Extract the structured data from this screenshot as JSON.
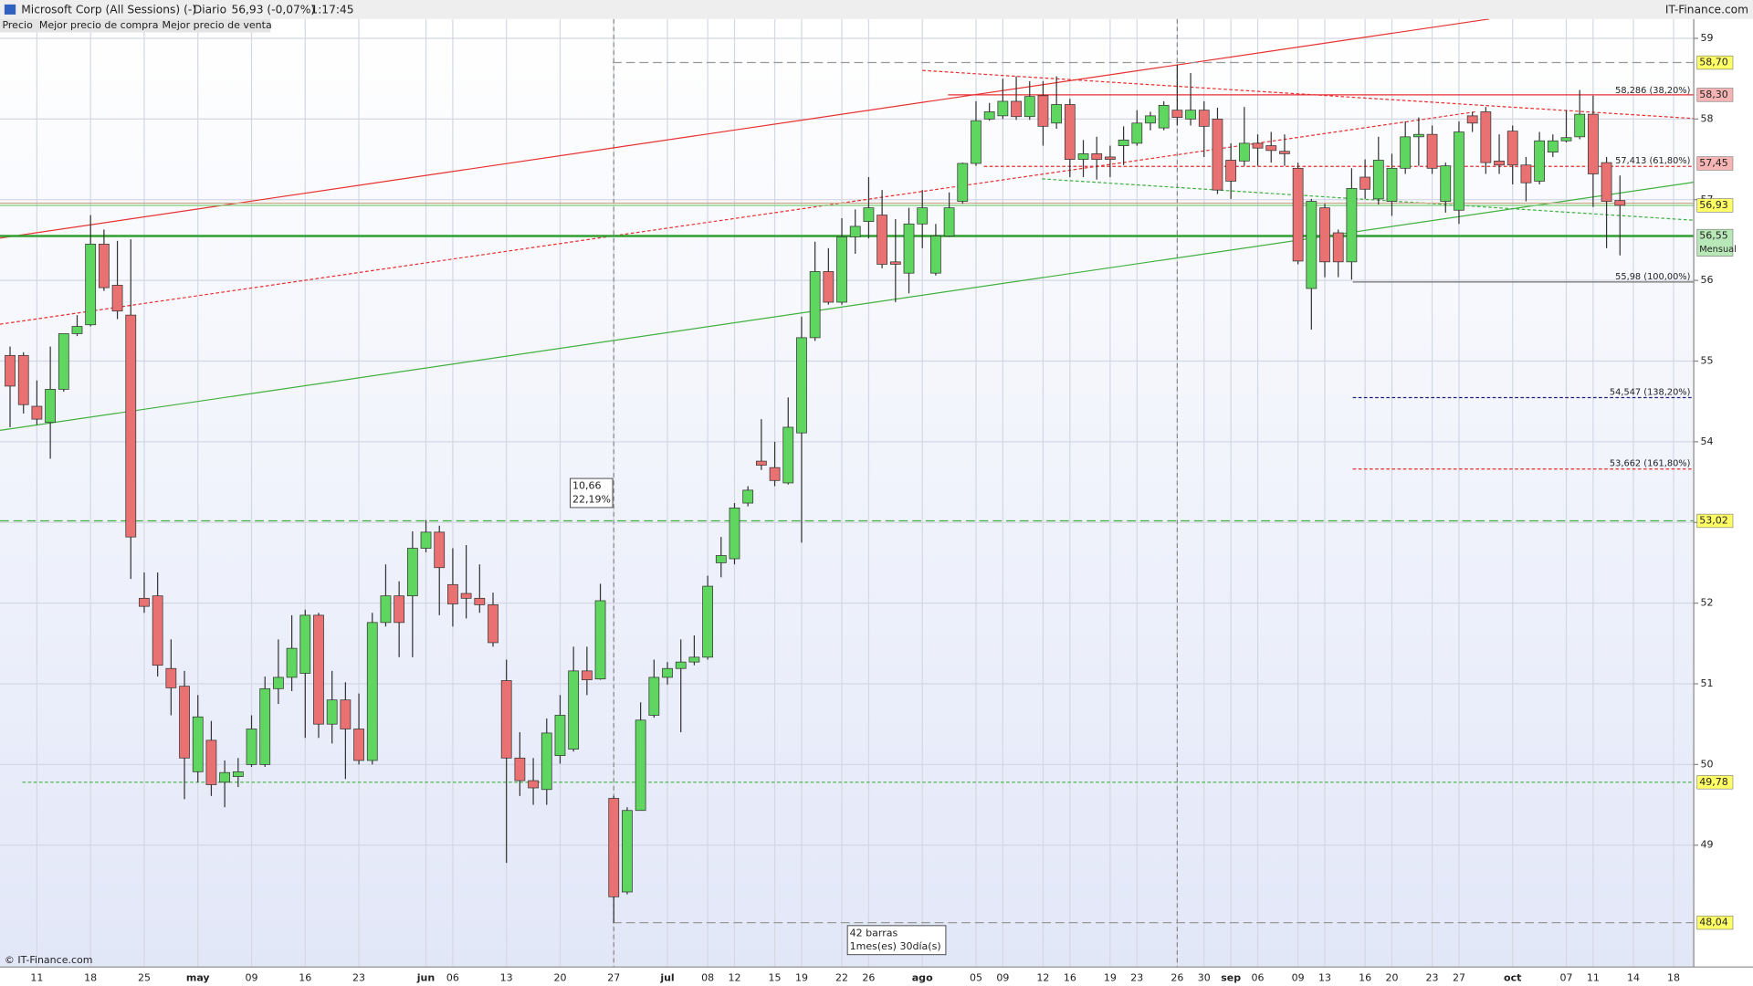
{
  "chart_data": {
    "type": "candlestick",
    "title": "Microsoft Corp (All Sessions) (-)",
    "period": "Diario",
    "last": "56,93 (-0,07%)",
    "time": "1:17:45",
    "source": "IT-Finance.com",
    "footer": "© IT-Finance.com",
    "legend": [
      "Precio",
      "Mejor precio de compra",
      "Mejor precio de venta"
    ],
    "legend_colors": [
      "#000000",
      "#22aa22",
      "#e03030"
    ],
    "up_color": "#5fd65f",
    "down_color": "#e97171",
    "grid": true,
    "ylim": [
      47.49,
      59.24
    ],
    "yticks": [
      49,
      50,
      51,
      52,
      53,
      54,
      55,
      56,
      57,
      58,
      59
    ],
    "categories": [
      null,
      null,
      "11",
      null,
      null,
      null,
      "18",
      null,
      null,
      null,
      "25",
      null,
      null,
      null,
      "may",
      null,
      null,
      null,
      "09",
      null,
      null,
      null,
      "16",
      null,
      null,
      null,
      "23",
      null,
      null,
      null,
      null,
      "jun",
      null,
      "06",
      null,
      null,
      null,
      "13",
      null,
      null,
      null,
      "20",
      null,
      null,
      null,
      "27",
      null,
      null,
      null,
      "jul",
      null,
      null,
      "08",
      null,
      "12",
      null,
      null,
      "15",
      null,
      "19",
      null,
      null,
      "22",
      null,
      "26",
      null,
      null,
      null,
      "ago",
      null,
      null,
      null,
      "05",
      null,
      "09",
      null,
      null,
      "12",
      null,
      "16",
      null,
      null,
      "19",
      null,
      "23",
      null,
      null,
      "26",
      null,
      "30",
      null,
      "sep",
      null,
      "06",
      null,
      null,
      "09",
      null,
      "13",
      null,
      null,
      "16",
      null,
      "20",
      null,
      null,
      "23",
      null,
      "27",
      null,
      null,
      null,
      "oct",
      null,
      null,
      null,
      "07",
      null,
      "11",
      null,
      null,
      "14",
      null,
      null,
      "18"
    ],
    "open": [
      55.07,
      55.07,
      54.44,
      54.24,
      54.65,
      55.34,
      55.45,
      56.45,
      55.94,
      55.57,
      52.06,
      52.09,
      51.19,
      50.97,
      49.91,
      50.3,
      49.78,
      49.85,
      50.0,
      50.0,
      50.94,
      51.08,
      51.13,
      51.85,
      50.5,
      50.8,
      50.44,
      50.05,
      51.76,
      52.09,
      52.09,
      52.68,
      52.88,
      52.23,
      52.12,
      52.06,
      51.98,
      51.04,
      50.08,
      49.8,
      49.69,
      50.11,
      50.19,
      51.16,
      51.06,
      49.58,
      48.42,
      49.43,
      50.61,
      51.08,
      51.19,
      51.27,
      51.33,
      52.5,
      52.55,
      53.24,
      53.76,
      53.68,
      53.49,
      54.11,
      55.29,
      56.11,
      55.73,
      56.54,
      56.73,
      56.81,
      56.23,
      56.09,
      56.7,
      56.09,
      56.55,
      56.98,
      57.45,
      58.0,
      58.04,
      58.22,
      58.03,
      58.29,
      57.95,
      58.18,
      57.5,
      57.57,
      57.53,
      57.67,
      57.7,
      57.95,
      57.89,
      58.11,
      58.0,
      58.11,
      58.0,
      57.49,
      57.48,
      57.7,
      57.67,
      57.6,
      57.39,
      55.9,
      56.9,
      56.59,
      56.23,
      57.28,
      57.01,
      56.98,
      57.39,
      57.78,
      57.81,
      56.98,
      56.87,
      58.04,
      58.09,
      57.48,
      57.85,
      57.43,
      57.23,
      57.59,
      57.73,
      57.78,
      58.06,
      57.46,
      56.99,
      null,
      null,
      null,
      null
    ],
    "high": [
      55.18,
      55.11,
      54.76,
      55.18,
      55.34,
      55.57,
      56.81,
      56.63,
      56.49,
      56.51,
      52.38,
      52.38,
      51.55,
      51.16,
      50.86,
      50.54,
      50.05,
      50.08,
      50.61,
      51.09,
      51.55,
      51.85,
      51.92,
      51.88,
      51.16,
      51.02,
      50.88,
      51.88,
      52.48,
      52.27,
      52.89,
      53.03,
      52.96,
      52.68,
      52.72,
      52.48,
      52.13,
      51.3,
      50.4,
      50.08,
      50.57,
      50.86,
      51.46,
      51.46,
      52.24,
      49.61,
      49.47,
      50.77,
      51.3,
      51.27,
      51.55,
      51.6,
      52.34,
      52.82,
      53.24,
      53.45,
      54.28,
      54.0,
      54.55,
      55.55,
      56.48,
      56.4,
      56.77,
      56.88,
      57.28,
      57.12,
      56.76,
      56.9,
      57.12,
      56.7,
      57.09,
      57.46,
      58.22,
      58.2,
      58.5,
      58.53,
      58.47,
      58.47,
      58.53,
      58.25,
      57.74,
      57.78,
      57.67,
      57.91,
      58.11,
      58.09,
      58.22,
      58.67,
      58.57,
      58.22,
      58.14,
      57.7,
      58.15,
      57.81,
      57.84,
      57.81,
      57.46,
      57.01,
      56.95,
      56.63,
      57.39,
      57.5,
      57.78,
      57.57,
      57.97,
      58.02,
      57.92,
      57.46,
      57.97,
      58.09,
      58.15,
      57.81,
      57.92,
      57.53,
      57.84,
      57.81,
      58.11,
      58.36,
      58.29,
      57.53,
      57.3,
      null,
      null,
      null,
      null
    ],
    "low": [
      54.18,
      54.35,
      54.21,
      53.79,
      54.62,
      55.31,
      55.43,
      55.87,
      55.52,
      52.3,
      51.88,
      51.09,
      50.61,
      49.57,
      49.78,
      49.61,
      49.47,
      49.72,
      49.97,
      49.97,
      50.75,
      50.91,
      50.33,
      50.33,
      50.26,
      49.82,
      50.0,
      50.0,
      51.71,
      51.33,
      51.33,
      52.63,
      51.85,
      51.71,
      51.81,
      51.88,
      51.46,
      48.78,
      49.61,
      49.5,
      49.5,
      50.01,
      50.16,
      50.86,
      51.05,
      48.04,
      48.39,
      49.43,
      50.58,
      50.99,
      50.4,
      51.23,
      51.3,
      52.32,
      52.48,
      53.2,
      53.65,
      53.45,
      53.47,
      52.75,
      55.25,
      55.7,
      55.7,
      56.33,
      56.52,
      56.15,
      55.73,
      55.84,
      56.4,
      56.06,
      56.54,
      56.95,
      57.42,
      57.98,
      58.0,
      57.99,
      57.99,
      57.67,
      57.88,
      57.28,
      57.28,
      57.25,
      57.28,
      57.43,
      57.67,
      57.86,
      57.86,
      57.92,
      57.92,
      57.53,
      57.07,
      57.01,
      57.42,
      57.42,
      57.46,
      57.42,
      56.2,
      55.39,
      56.04,
      56.04,
      56.01,
      57.01,
      56.94,
      56.8,
      57.32,
      57.42,
      57.32,
      56.84,
      56.7,
      57.84,
      57.32,
      57.32,
      57.19,
      56.98,
      57.19,
      57.53,
      57.71,
      57.75,
      56.91,
      56.4,
      56.31,
      null,
      null,
      null,
      null
    ],
    "close": [
      54.69,
      54.46,
      54.28,
      54.65,
      55.34,
      55.43,
      56.45,
      55.91,
      55.62,
      52.82,
      51.96,
      51.23,
      50.95,
      50.08,
      50.59,
      49.75,
      49.9,
      49.91,
      50.44,
      50.94,
      51.08,
      51.44,
      51.85,
      50.5,
      50.8,
      50.44,
      50.05,
      51.76,
      52.09,
      51.76,
      52.68,
      52.88,
      52.44,
      51.99,
      52.06,
      51.98,
      51.51,
      50.08,
      49.8,
      49.71,
      50.39,
      50.61,
      51.16,
      51.05,
      52.03,
      48.36,
      49.43,
      50.55,
      51.08,
      51.19,
      51.27,
      51.33,
      52.21,
      52.59,
      53.18,
      53.4,
      53.71,
      53.52,
      54.18,
      55.29,
      56.11,
      55.73,
      56.54,
      56.67,
      56.9,
      56.2,
      56.2,
      56.7,
      56.9,
      56.55,
      56.9,
      57.45,
      57.98,
      58.09,
      58.22,
      58.03,
      58.28,
      57.91,
      58.18,
      57.5,
      57.57,
      57.5,
      57.5,
      57.74,
      57.95,
      58.04,
      58.17,
      58.02,
      58.11,
      57.91,
      57.12,
      57.23,
      57.7,
      57.64,
      57.61,
      57.57,
      56.24,
      56.98,
      56.23,
      56.23,
      57.14,
      57.13,
      57.49,
      57.39,
      57.78,
      57.81,
      57.39,
      57.42,
      57.84,
      57.95,
      57.46,
      57.43,
      57.43,
      57.21,
      57.73,
      57.73,
      57.77,
      58.06,
      57.32,
      56.98,
      56.93,
      null,
      null,
      null,
      null
    ],
    "price_labels": [
      {
        "value": 58.7,
        "label": "58,70",
        "color": "#ffff66"
      },
      {
        "value": 58.3,
        "label": "58,30",
        "color": "#f6b4b4"
      },
      {
        "value": 57.45,
        "label": "57,45",
        "color": "#f6b4b4"
      },
      {
        "value": 56.93,
        "label": "56,93",
        "color": "#ffff66"
      },
      {
        "value": 56.55,
        "label": "56,55",
        "note": "Mensual",
        "color": "#b8e8b8"
      },
      {
        "value": 53.02,
        "label": "53,02",
        "color": "#ffff66"
      },
      {
        "value": 49.78,
        "label": "49,78",
        "color": "#ffff66"
      },
      {
        "value": 48.04,
        "label": "48,04",
        "color": "#ffff66"
      }
    ],
    "fib_levels": [
      {
        "value": 58.286,
        "label": "58,286 (38,20%)",
        "color": "#a040c0"
      },
      {
        "value": 57.413,
        "label": "57,413 (61,80%)",
        "color": "#e03030"
      },
      {
        "value": 55.98,
        "label": "55,98 (100,00%)",
        "color": "#707070"
      },
      {
        "value": 54.547,
        "label": "54,547 (138,20%)",
        "color": "#202080"
      },
      {
        "value": 53.662,
        "label": "53,662 (161,80%)",
        "color": "#e03030"
      }
    ],
    "annotations": [
      {
        "lines": [
          "10,66",
          "22,19%"
        ]
      },
      {
        "lines": [
          "42 barras",
          "1mes(es) 30día(s)"
        ]
      }
    ]
  }
}
